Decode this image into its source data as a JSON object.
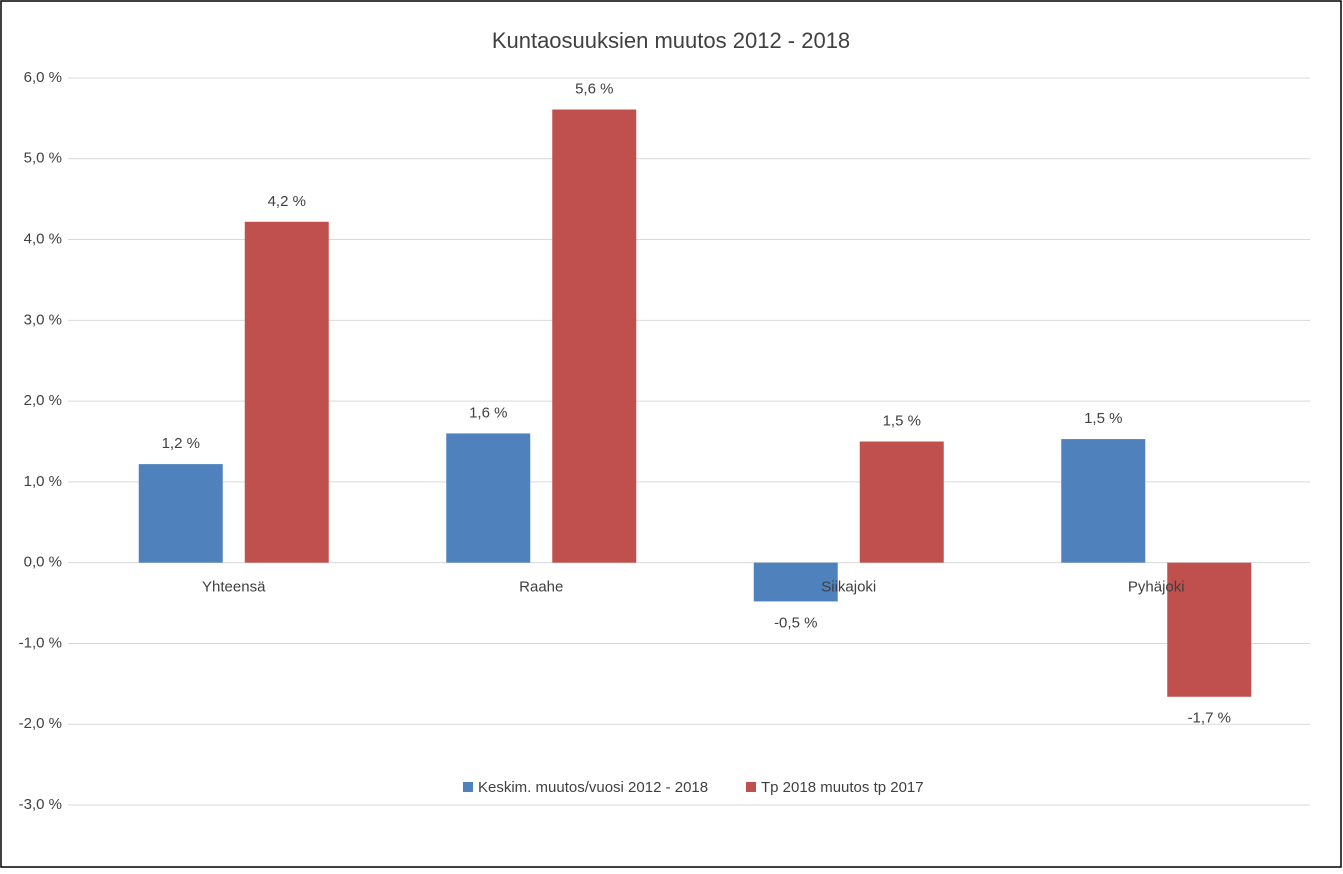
{
  "chart_data": {
    "type": "bar",
    "title": "Kuntaosuuksien muutos 2012 -  2018",
    "categories": [
      "Yhteensä",
      "Raahe",
      "Siikajoki",
      "Pyhäjoki"
    ],
    "series": [
      {
        "name": "Keskim.  muutos/vuosi 2012 - 2018",
        "color": "#4f81bd",
        "values": [
          1.22,
          1.6,
          -0.48,
          1.53
        ],
        "value_labels": [
          "1,2 %",
          "1,6 %",
          "-0,5 %",
          "1,5 %"
        ]
      },
      {
        "name": "Tp 2018 muutos tp 2017",
        "color": "#c0504d",
        "values": [
          4.22,
          5.61,
          1.5,
          -1.66
        ],
        "value_labels": [
          "4,2 %",
          "5,6 %",
          "1,5 %",
          "-1,7 %"
        ]
      }
    ],
    "ylim": [
      -3,
      6
    ],
    "yticks": [
      {
        "value": -3,
        "label": "-3,0 %"
      },
      {
        "value": -2,
        "label": "-2,0 %"
      },
      {
        "value": -1,
        "label": "-1,0 %"
      },
      {
        "value": 0,
        "label": "0,0 %"
      },
      {
        "value": 1,
        "label": "1,0 %"
      },
      {
        "value": 2,
        "label": "2,0 %"
      },
      {
        "value": 3,
        "label": "3,0 %"
      },
      {
        "value": 4,
        "label": "4,0 %"
      },
      {
        "value": 5,
        "label": "5,0 %"
      },
      {
        "value": 6,
        "label": "6,0 %"
      }
    ],
    "grid": true,
    "legend": "bottom"
  }
}
